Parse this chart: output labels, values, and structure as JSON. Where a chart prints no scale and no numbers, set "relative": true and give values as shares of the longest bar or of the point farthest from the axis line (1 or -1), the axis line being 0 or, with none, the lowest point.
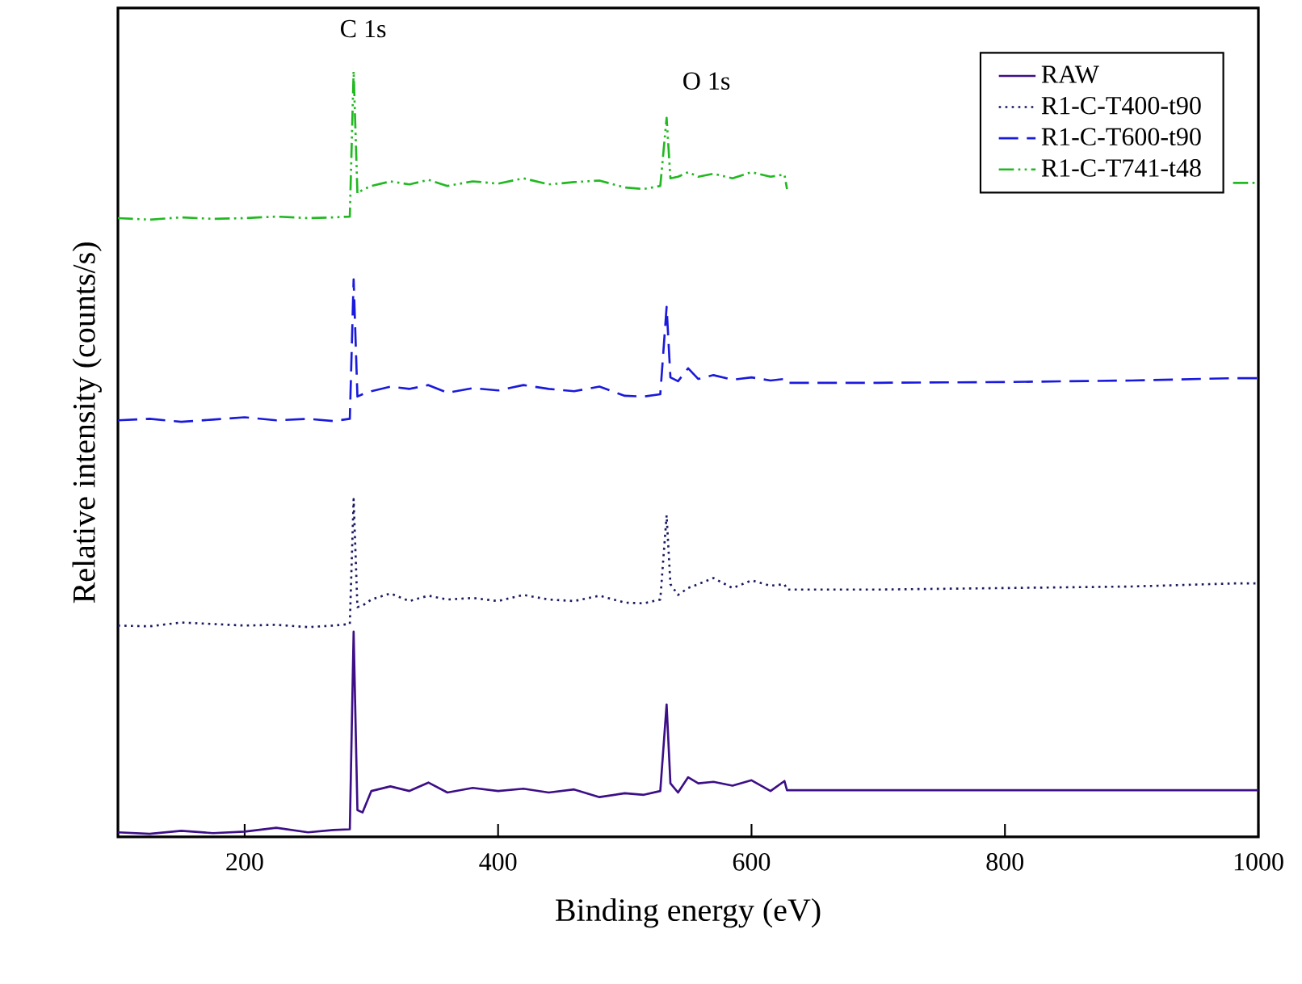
{
  "chart_data": {
    "type": "line",
    "relative": true,
    "xlabel": "Binding energy (eV)",
    "ylabel": "Relative intensity (counts/s)",
    "xlim": [
      100,
      1000
    ],
    "xticks": [
      200,
      400,
      600,
      800,
      1000
    ],
    "grid": false,
    "legend": "top right",
    "marker": "none",
    "annotations": [
      "C 1s",
      "O 1s"
    ],
    "x": [
      100,
      125,
      150,
      175,
      200,
      225,
      250,
      270,
      283,
      286,
      289,
      293,
      300,
      315,
      330,
      345,
      360,
      380,
      400,
      420,
      440,
      460,
      480,
      500,
      515,
      528,
      533,
      536,
      542,
      550,
      558,
      570,
      585,
      600,
      615,
      626,
      628,
      700,
      800,
      900,
      980,
      1000
    ],
    "series": [
      {
        "name": "RAW",
        "color": "#3d0f87",
        "line_style": "solid",
        "values": [
          0.006,
          0.004,
          0.008,
          0.005,
          0.007,
          0.012,
          0.006,
          0.009,
          0.01,
          0.268,
          0.035,
          0.032,
          0.06,
          0.066,
          0.06,
          0.071,
          0.058,
          0.064,
          0.06,
          0.063,
          0.058,
          0.062,
          0.052,
          0.057,
          0.055,
          0.06,
          0.173,
          0.07,
          0.058,
          0.078,
          0.07,
          0.072,
          0.067,
          0.074,
          0.06,
          0.073,
          0.061,
          0.061,
          0.061,
          0.061,
          0.061,
          0.061
        ]
      },
      {
        "name": "R1-C-T400-t90",
        "color": "#1a1a60",
        "line_style": "dotted",
        "values": [
          0.276,
          0.275,
          0.28,
          0.278,
          0.276,
          0.277,
          0.274,
          0.276,
          0.278,
          0.441,
          0.3,
          0.302,
          0.31,
          0.318,
          0.308,
          0.315,
          0.31,
          0.312,
          0.308,
          0.316,
          0.31,
          0.308,
          0.315,
          0.306,
          0.305,
          0.31,
          0.42,
          0.33,
          0.316,
          0.325,
          0.33,
          0.338,
          0.325,
          0.335,
          0.328,
          0.33,
          0.323,
          0.323,
          0.325,
          0.327,
          0.331,
          0.331
        ]
      },
      {
        "name": "R1-C-T600-t90",
        "color": "#1a1adc",
        "line_style": "dashed",
        "values": [
          0.544,
          0.546,
          0.542,
          0.545,
          0.548,
          0.544,
          0.546,
          0.543,
          0.546,
          0.728,
          0.575,
          0.578,
          0.582,
          0.588,
          0.585,
          0.59,
          0.58,
          0.586,
          0.583,
          0.59,
          0.585,
          0.582,
          0.588,
          0.576,
          0.575,
          0.578,
          0.692,
          0.6,
          0.595,
          0.612,
          0.598,
          0.603,
          0.597,
          0.6,
          0.596,
          0.598,
          0.593,
          0.593,
          0.594,
          0.596,
          0.599,
          0.599
        ]
      },
      {
        "name": "R1-C-T741-t48",
        "color": "#22b822",
        "line_style": "dashdotdotted",
        "values": [
          0.808,
          0.806,
          0.809,
          0.807,
          0.808,
          0.81,
          0.808,
          0.809,
          0.81,
          1.0,
          0.84,
          0.845,
          0.85,
          0.856,
          0.852,
          0.858,
          0.85,
          0.856,
          0.853,
          0.86,
          0.852,
          0.855,
          0.857,
          0.848,
          0.846,
          0.85,
          0.939,
          0.86,
          0.862,
          0.868,
          0.862,
          0.866,
          0.86,
          0.868,
          0.862,
          0.865,
          0.846,
          null,
          null,
          null,
          0.854,
          0.854
        ]
      }
    ]
  }
}
